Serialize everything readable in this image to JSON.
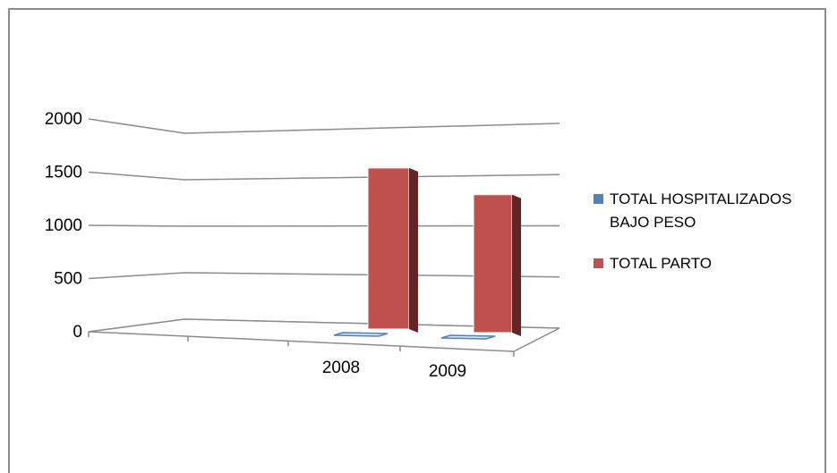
{
  "chart_data": {
    "type": "bar",
    "categories": [
      "",
      "",
      "2008",
      "2009"
    ],
    "series": [
      {
        "name": "TOTAL HOSPITALIZADOS BAJO PESO",
        "values": [
          null,
          null,
          20,
          15
        ],
        "color": "#4f81bd"
      },
      {
        "name": "TOTAL PARTO",
        "values": [
          null,
          null,
          1580,
          1330
        ],
        "color": "#c0504d"
      }
    ],
    "ylim": [
      0,
      2000
    ],
    "yticks": [
      "0",
      "500",
      "1000",
      "1500",
      "2000"
    ],
    "grid": true,
    "legend": "right",
    "view": "3d-perspective"
  }
}
